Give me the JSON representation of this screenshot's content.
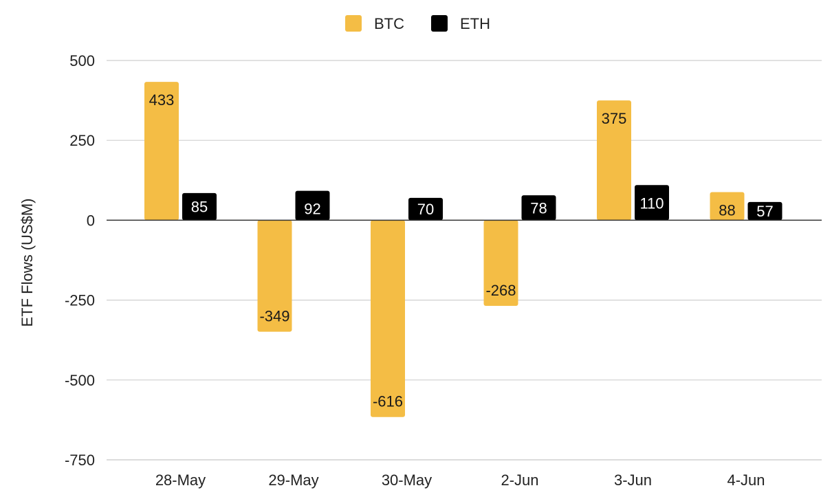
{
  "chart_data": {
    "type": "bar",
    "title": "",
    "xlabel": "",
    "ylabel": "ETF Flows (US$M)",
    "categories": [
      "28-May",
      "29-May",
      "30-May",
      "2-Jun",
      "3-Jun",
      "4-Jun"
    ],
    "series": [
      {
        "name": "BTC",
        "color": "#F4BD45",
        "label_color": "#1a1a1a",
        "values": [
          433,
          -349,
          -616,
          -268,
          375,
          88
        ]
      },
      {
        "name": "ETH",
        "color": "#000000",
        "label_color": "#ffffff",
        "values": [
          85,
          92,
          70,
          78,
          110,
          57
        ]
      }
    ],
    "ylim": [
      -750,
      500
    ],
    "yticks": [
      500,
      250,
      0,
      -250,
      -500,
      -750
    ],
    "grid": true,
    "legend_position": "top-center"
  }
}
